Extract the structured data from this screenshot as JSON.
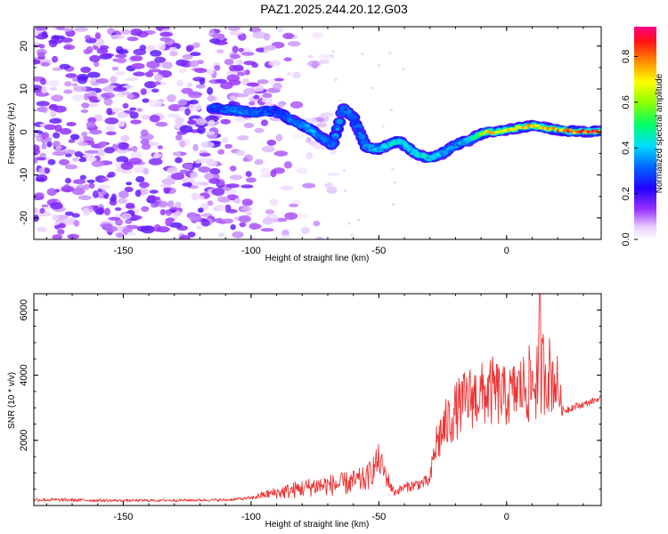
{
  "title": "PAZ1.2025.244.20.12.G03",
  "colors": {
    "snr_line": "#ee3333",
    "spectro_track_core": "#22dd66",
    "spectro_track_edge": "#1111cc",
    "noise": "#8833ee"
  },
  "chart_data": [
    {
      "id": "spectrogram",
      "type": "heatmap",
      "title": "PAZ1.2025.244.20.12.G03",
      "xlabel": "Height of straight line (km)",
      "ylabel": "Frequency (Hz)",
      "xlim": [
        -185,
        37
      ],
      "ylim": [
        -25,
        24.5
      ],
      "xticks": [
        -150,
        -100,
        -50,
        0
      ],
      "xtick_labels": [
        "-150",
        "-100",
        "-50",
        "0"
      ],
      "yticks": [
        -20,
        -10,
        0,
        10,
        20
      ],
      "ytick_labels": [
        "-20",
        "-10",
        "0",
        "10",
        "20"
      ],
      "colorbar": {
        "label": "Normalized spectral amplitude",
        "range": [
          0,
          0.93
        ],
        "ticks": [
          0.0,
          0.2,
          0.4,
          0.6,
          0.8
        ],
        "tick_labels": [
          "0.0",
          "0.2",
          "0.4",
          "0.6",
          "0.8"
        ],
        "colormap": "rainbow-white (white→purple→blue→cyan→green→yellow→red→magenta)"
      },
      "track": {
        "description": "Dominant frequency track of the occultation signal",
        "height_km": [
          -115,
          -105,
          -98,
          -92,
          -88,
          -83,
          -78,
          -73,
          -68,
          -64,
          -60,
          -55,
          -50,
          -46,
          -42,
          -38,
          -34,
          -30,
          -25,
          -20,
          -15,
          -12,
          -8,
          -4,
          0,
          5,
          10,
          15,
          20,
          25,
          30,
          37
        ],
        "frequency_hz": [
          5.5,
          5.0,
          4.5,
          5.0,
          4.0,
          2.5,
          1.0,
          -1.0,
          -3.0,
          5.5,
          3.5,
          -3.5,
          -4.0,
          -3.0,
          -2.0,
          -4.0,
          -5.5,
          -6.0,
          -5.0,
          -3.0,
          -2.0,
          -1.0,
          0.0,
          0.0,
          0.5,
          1.0,
          1.5,
          1.0,
          0.5,
          0.2,
          0.1,
          0.1
        ],
        "amplitude": [
          0.3,
          0.35,
          0.35,
          0.3,
          0.3,
          0.35,
          0.4,
          0.35,
          0.35,
          0.35,
          0.3,
          0.35,
          0.4,
          0.45,
          0.45,
          0.4,
          0.45,
          0.45,
          0.4,
          0.35,
          0.45,
          0.55,
          0.7,
          0.75,
          0.75,
          0.8,
          0.8,
          0.75,
          0.8,
          0.85,
          0.9,
          0.9
        ]
      },
      "noise_region_km": [
        -185,
        -95
      ]
    },
    {
      "id": "snr",
      "type": "line",
      "xlabel": "Height of straight line (km)",
      "ylabel": "SNR (10 * v/v)",
      "xlim": [
        -185,
        37
      ],
      "ylim": [
        0,
        6500
      ],
      "xticks": [
        -150,
        -100,
        -50,
        0
      ],
      "xtick_labels": [
        "-150",
        "-100",
        "-50",
        "0"
      ],
      "yticks": [
        2000,
        4000,
        6000
      ],
      "ytick_labels": [
        "2000",
        "4000",
        "6000"
      ],
      "series": [
        {
          "name": "SNR",
          "envelope_height_km": [
            -185,
            -150,
            -110,
            -100,
            -95,
            -85,
            -75,
            -65,
            -55,
            -50,
            -46,
            -44,
            -40,
            -35,
            -30,
            -28,
            -25,
            -20,
            -15,
            -10,
            -5,
            0,
            5,
            10,
            15,
            20,
            22,
            25,
            30,
            37
          ],
          "envelope_snr": [
            180,
            150,
            170,
            230,
            330,
            450,
            600,
            650,
            800,
            1400,
            700,
            400,
            550,
            650,
            750,
            1800,
            2300,
            2900,
            3300,
            3400,
            3500,
            3300,
            3600,
            3700,
            4200,
            3700,
            2900,
            3000,
            3100,
            3300
          ],
          "noise_amplitude": [
            60,
            40,
            40,
            50,
            120,
            250,
            300,
            350,
            400,
            500,
            250,
            120,
            150,
            180,
            200,
            700,
            800,
            900,
            1000,
            1000,
            1100,
            900,
            1000,
            1300,
            1400,
            900,
            150,
            120,
            100,
            90
          ],
          "peak": {
            "height_km": 13,
            "snr": 6500
          }
        }
      ]
    }
  ]
}
